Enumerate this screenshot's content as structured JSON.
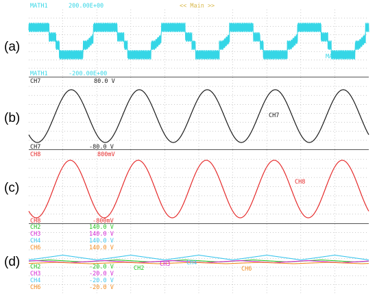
{
  "header": {
    "left_label": "MATH1",
    "left_value": "200.00E+00",
    "center": "<< Main >>"
  },
  "colors": {
    "math1": "#35d6e6",
    "ch7": "#1a1a1a",
    "ch8": "#e52a2a",
    "ch2": "#22c41e",
    "ch3": "#d21fd2",
    "ch4": "#3dc6ee",
    "ch6": "#f08a1e"
  },
  "chart_data": [
    {
      "panel": "(a)",
      "type": "line",
      "series": [
        {
          "name": "MATH1",
          "waveform": "stepped-square",
          "cycles": 5
        }
      ],
      "top_label": {
        "ch": "MATH1",
        "val": "200.00E+00"
      },
      "bottom_label": {
        "ch": "MATH1",
        "val": "-200.00E+00"
      },
      "trace_label": "MATH1"
    },
    {
      "panel": "(b)",
      "type": "line",
      "series": [
        {
          "name": "CH7",
          "waveform": "sine",
          "cycles": 5
        }
      ],
      "top_label": {
        "ch": "CH7",
        "val": "80.0 V"
      },
      "bottom_label": {
        "ch": "CH7",
        "val": "-80.0 V"
      },
      "trace_label": "CH7",
      "ylim": [
        -80,
        80
      ]
    },
    {
      "panel": "(c)",
      "type": "line",
      "series": [
        {
          "name": "CH8",
          "waveform": "sine",
          "cycles": 5
        }
      ],
      "top_label": {
        "ch": "CH8",
        "val": "800mV"
      },
      "bottom_label": {
        "ch": "CH8",
        "val": "-800mV"
      },
      "trace_label": "CH8",
      "ylim": [
        -0.8,
        0.8
      ]
    },
    {
      "panel": "(d)",
      "type": "line",
      "series": [
        {
          "name": "CH2",
          "top": "140.0 V",
          "bottom": "-20.0 V"
        },
        {
          "name": "CH3",
          "top": "140.0 V",
          "bottom": "-20.0 V"
        },
        {
          "name": "CH4",
          "top": "140.0 V",
          "bottom": "-20.0 V"
        },
        {
          "name": "CH6",
          "top": "140.0 V",
          "bottom": "-20.0 V"
        }
      ],
      "trace_labels": [
        "CH2",
        "CH3",
        "CH4",
        "CH6"
      ]
    }
  ]
}
